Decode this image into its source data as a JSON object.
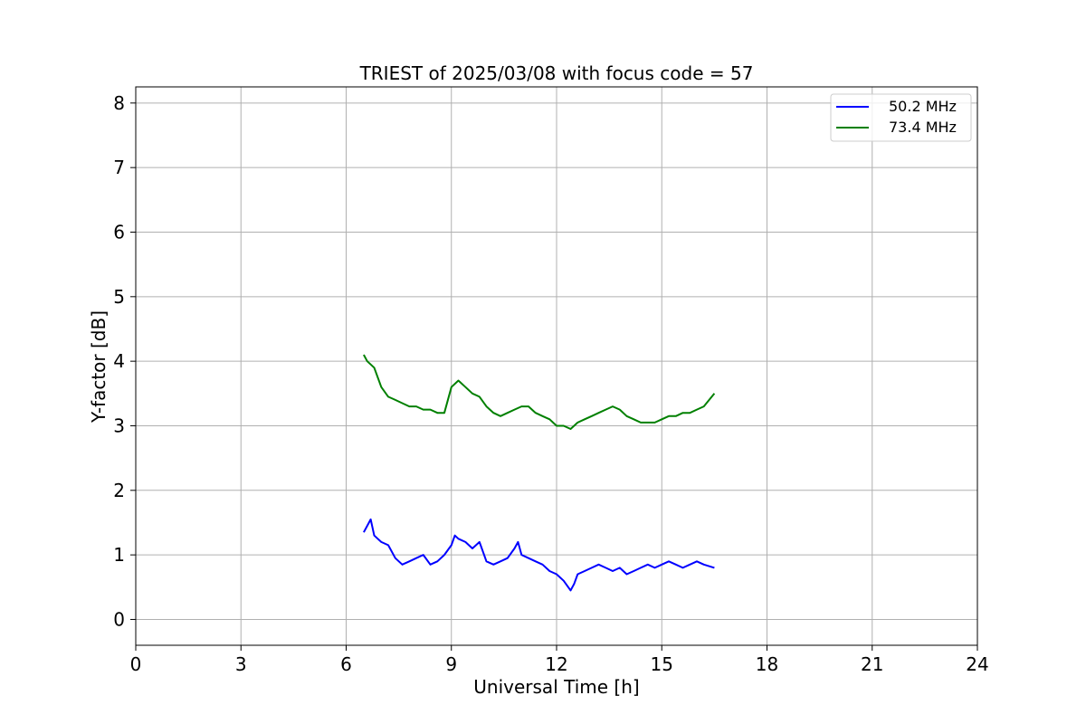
{
  "chart_data": {
    "type": "line",
    "title": "TRIEST of 2025/03/08 with focus code = 57",
    "xlabel": "Universal Time [h]",
    "ylabel": "Y-factor [dB]",
    "xlim": [
      0,
      24
    ],
    "ylim": [
      -0.4,
      8.25
    ],
    "xticks": [
      0,
      3,
      6,
      9,
      12,
      15,
      18,
      21,
      24
    ],
    "yticks": [
      0,
      1,
      2,
      3,
      4,
      5,
      6,
      7,
      8
    ],
    "grid": true,
    "legend_position": "top-right",
    "series": [
      {
        "name": "50.2 MHz",
        "color": "#0000ff",
        "x": [
          6.5,
          6.6,
          6.7,
          6.8,
          6.9,
          7.0,
          7.2,
          7.4,
          7.6,
          7.8,
          8.0,
          8.2,
          8.4,
          8.6,
          8.8,
          9.0,
          9.1,
          9.2,
          9.4,
          9.6,
          9.8,
          10.0,
          10.2,
          10.4,
          10.6,
          10.8,
          10.9,
          11.0,
          11.2,
          11.4,
          11.6,
          11.8,
          12.0,
          12.2,
          12.4,
          12.5,
          12.6,
          12.8,
          13.0,
          13.2,
          13.4,
          13.6,
          13.8,
          14.0,
          14.2,
          14.4,
          14.6,
          14.8,
          15.0,
          15.2,
          15.4,
          15.6,
          15.8,
          16.0,
          16.2,
          16.5
        ],
        "y": [
          1.35,
          1.45,
          1.55,
          1.3,
          1.25,
          1.2,
          1.15,
          0.95,
          0.85,
          0.9,
          0.95,
          1.0,
          0.85,
          0.9,
          1.0,
          1.15,
          1.3,
          1.25,
          1.2,
          1.1,
          1.2,
          0.9,
          0.85,
          0.9,
          0.95,
          1.1,
          1.2,
          1.0,
          0.95,
          0.9,
          0.85,
          0.75,
          0.7,
          0.6,
          0.45,
          0.55,
          0.7,
          0.75,
          0.8,
          0.85,
          0.8,
          0.75,
          0.8,
          0.7,
          0.75,
          0.8,
          0.85,
          0.8,
          0.85,
          0.9,
          0.85,
          0.8,
          0.85,
          0.9,
          0.85,
          0.8
        ]
      },
      {
        "name": "73.4 MHz",
        "color": "#008000",
        "x": [
          6.5,
          6.6,
          6.7,
          6.8,
          6.9,
          7.0,
          7.2,
          7.4,
          7.6,
          7.8,
          8.0,
          8.2,
          8.4,
          8.6,
          8.8,
          9.0,
          9.2,
          9.4,
          9.6,
          9.8,
          10.0,
          10.2,
          10.4,
          10.6,
          10.8,
          11.0,
          11.2,
          11.4,
          11.6,
          11.8,
          12.0,
          12.2,
          12.4,
          12.6,
          12.8,
          13.0,
          13.2,
          13.4,
          13.6,
          13.8,
          14.0,
          14.2,
          14.4,
          14.6,
          14.8,
          15.0,
          15.2,
          15.4,
          15.6,
          15.8,
          16.0,
          16.2,
          16.5
        ],
        "y": [
          4.1,
          4.0,
          3.95,
          3.9,
          3.75,
          3.6,
          3.45,
          3.4,
          3.35,
          3.3,
          3.3,
          3.25,
          3.25,
          3.2,
          3.2,
          3.6,
          3.7,
          3.6,
          3.5,
          3.45,
          3.3,
          3.2,
          3.15,
          3.2,
          3.25,
          3.3,
          3.3,
          3.2,
          3.15,
          3.1,
          3.0,
          3.0,
          2.95,
          3.05,
          3.1,
          3.15,
          3.2,
          3.25,
          3.3,
          3.25,
          3.15,
          3.1,
          3.05,
          3.05,
          3.05,
          3.1,
          3.15,
          3.15,
          3.2,
          3.2,
          3.25,
          3.3,
          3.5
        ]
      }
    ]
  }
}
